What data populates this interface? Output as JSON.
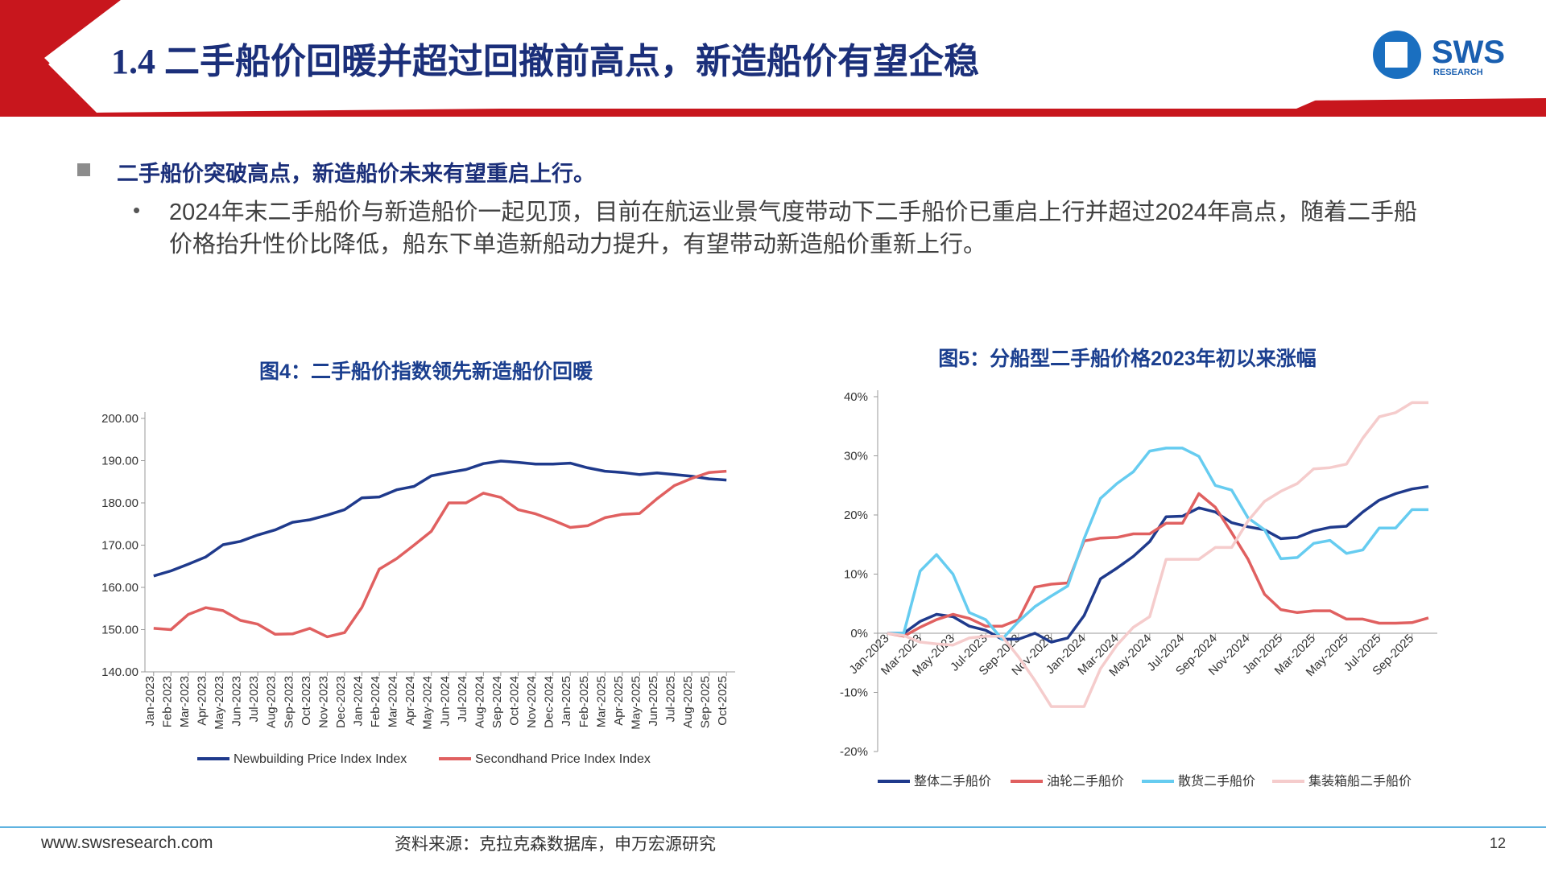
{
  "header": {
    "title": "1.4 二手船价回暖并超过回撤前高点，新造船价有望企稳",
    "logo": "SWS",
    "logo_sub": "RESEARCH"
  },
  "section": {
    "heading": "二手船价突破高点，新造船价未来有望重启上行。",
    "bullet": "2024年末二手船价与新造船价一起见顶，目前在航运业景气度带动下二手船价已重启上行并超过2024年高点，随着二手船价格抬升性价比降低，船东下单造新船动力提升，有望带动新造船价重新上行。"
  },
  "footer": {
    "website": "www.swsresearch.com",
    "source": "资料来源：克拉克森数据库，申万宏源研究",
    "page": "12"
  },
  "chart_data": [
    {
      "type": "line",
      "title": "图4：二手船价指数领先新造船价回暖",
      "categories": [
        "Jan-2023",
        "Feb-2023",
        "Mar-2023",
        "Apr-2023",
        "May-2023",
        "Jun-2023",
        "Jul-2023",
        "Aug-2023",
        "Sep-2023",
        "Oct-2023",
        "Nov-2023",
        "Dec-2023",
        "Jan-2024",
        "Feb-2024",
        "Mar-2024",
        "Apr-2024",
        "May-2024",
        "Jun-2024",
        "Jul-2024",
        "Aug-2024",
        "Sep-2024",
        "Oct-2024",
        "Nov-2024",
        "Dec-2024",
        "Jan-2025",
        "Feb-2025",
        "Mar-2025",
        "Apr-2025",
        "May-2025",
        "Jun-2025",
        "Jul-2025",
        "Aug-2025",
        "Sep-2025",
        "Oct-2025"
      ],
      "series": [
        {
          "name": "Newbuilding Price Index Index",
          "color": "#1f3a8c",
          "values": [
            162.7,
            163.9,
            165.5,
            167.2,
            170.1,
            170.9,
            172.4,
            173.6,
            175.4,
            176.0,
            177.1,
            178.4,
            181.2,
            181.4,
            183.1,
            183.9,
            186.4,
            187.2,
            187.9,
            189.3,
            189.9,
            189.6,
            189.2,
            189.2,
            189.4,
            188.3,
            187.5,
            187.2,
            186.7,
            187.1,
            186.7,
            186.3,
            185.7,
            185.4
          ]
        },
        {
          "name": "Secondhand Price Index Index",
          "color": "#e06060",
          "values": [
            150.3,
            150.0,
            153.6,
            155.2,
            154.5,
            152.2,
            151.3,
            148.9,
            149.0,
            150.3,
            148.3,
            149.3,
            155.3,
            164.3,
            166.8,
            170.0,
            173.3,
            180.0,
            180.0,
            182.3,
            181.3,
            178.4,
            177.4,
            175.9,
            174.2,
            174.6,
            176.5,
            177.3,
            177.5,
            181.0,
            184.1,
            185.8,
            187.2,
            187.5
          ]
        }
      ],
      "ylim": [
        140,
        200
      ],
      "yticks": [
        {
          "value": 140,
          "label": "140.00"
        },
        {
          "value": 150,
          "label": "150.00"
        },
        {
          "value": 160,
          "label": "160.00"
        },
        {
          "value": 170,
          "label": "170.00"
        },
        {
          "value": 180,
          "label": "180.00"
        },
        {
          "value": 190,
          "label": "190.00"
        },
        {
          "value": 200,
          "label": "200.00"
        }
      ],
      "legend": "bottom"
    },
    {
      "type": "line",
      "title": "图5：分船型二手船价格2023年初以来涨幅",
      "categories": [
        "Jan-2023",
        null,
        "Mar-2023",
        null,
        "May-2023",
        null,
        "Jul-2023",
        null,
        "Sep-2023",
        null,
        "Nov-2023",
        null,
        "Jan-2024",
        null,
        "Mar-2024",
        null,
        "May-2024",
        null,
        "Jul-2024",
        null,
        "Sep-2024",
        null,
        "Nov-2024",
        null,
        "Jan-2025",
        null,
        "Mar-2025",
        null,
        "May-2025",
        null,
        "Jul-2025",
        null,
        "Sep-2025",
        null
      ],
      "series": [
        {
          "name": "整体二手船价",
          "color": "#1f3a8c",
          "values": [
            0,
            0,
            2,
            3.2,
            2.8,
            1.2,
            0.5,
            -1,
            -1,
            0,
            -1.5,
            -0.8,
            3,
            9.2,
            11,
            13,
            15.5,
            19.7,
            19.8,
            21.2,
            20.5,
            18.7,
            18,
            17.5,
            16,
            16.2,
            17.3,
            17.9,
            18.1,
            20.5,
            22.5,
            23.6,
            24.4,
            24.8
          ]
        },
        {
          "name": "油轮二手船价",
          "color": "#e06060",
          "values": [
            0,
            -0.5,
            1,
            2.3,
            3.2,
            2.5,
            1.2,
            1.2,
            2.3,
            7.8,
            8.3,
            8.5,
            15.6,
            16.1,
            16.2,
            16.8,
            16.8,
            18.6,
            18.6,
            23.6,
            21.3,
            17,
            12.5,
            6.6,
            4,
            3.5,
            3.8,
            3.8,
            2.4,
            2.4,
            1.7,
            1.7,
            1.8,
            2.6
          ]
        },
        {
          "name": "散货二手船价",
          "color": "#66ccf0",
          "values": [
            0,
            0,
            10.5,
            13.3,
            10,
            3.5,
            2.3,
            -1,
            2,
            4.5,
            6.3,
            8,
            16,
            22.8,
            25.3,
            27.3,
            30.8,
            31.3,
            31.3,
            29.9,
            25,
            24.2,
            19.5,
            17.5,
            12.6,
            12.8,
            15.2,
            15.7,
            13.5,
            14.1,
            17.8,
            17.8,
            20.9,
            20.9
          ]
        },
        {
          "name": "集装箱船二手船价",
          "color": "#f5cccc",
          "values": [
            0,
            -0.4,
            -1.5,
            -1.8,
            -2,
            -0.8,
            -0.5,
            -0.5,
            -4,
            -8,
            -12.4,
            -12.4,
            -12.4,
            -6,
            -2,
            1,
            2.8,
            12.5,
            12.5,
            12.5,
            14.5,
            14.5,
            19,
            22.3,
            24,
            25.3,
            27.8,
            28,
            28.6,
            33,
            36.6,
            37.3,
            39,
            39
          ]
        }
      ],
      "ylim": [
        -20,
        40
      ],
      "yticks": [
        {
          "value": -20,
          "label": "-20%"
        },
        {
          "value": -10,
          "label": "-10%"
        },
        {
          "value": 0,
          "label": "0%"
        },
        {
          "value": 10,
          "label": "10%"
        },
        {
          "value": 20,
          "label": "20%"
        },
        {
          "value": 30,
          "label": "30%"
        },
        {
          "value": 40,
          "label": "40%"
        }
      ],
      "legend": "bottom"
    }
  ]
}
